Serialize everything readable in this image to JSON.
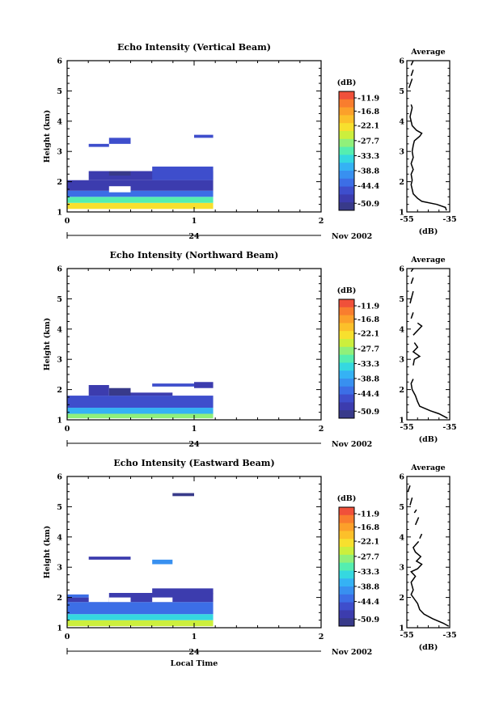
{
  "figure": {
    "colorbar_unit": "(dB)",
    "colorbar_ticks": [
      -11.9,
      -16.8,
      -22.1,
      -27.7,
      -33.3,
      -38.8,
      -44.4,
      -50.9
    ],
    "colorbar_tick_labels": [
      "-11.9",
      "-16.8",
      "-22.1",
      "-27.7",
      "-33.3",
      "-38.8",
      "-44.4",
      "-50.9"
    ],
    "colorbar_colors": [
      "#f0503a",
      "#f97d2e",
      "#fca02a",
      "#fcc02a",
      "#f7e02e",
      "#ccef3d",
      "#90f07a",
      "#55eeb0",
      "#35d8e0",
      "#35b2f4",
      "#3890f0",
      "#3c6ee6",
      "#3e4ecc",
      "#3c3cae",
      "#383a8a"
    ],
    "date_label": "Nov 2002",
    "day_label": "24",
    "x_axis_label": "Local Time",
    "average_title": "Average",
    "average_xlabel": "(dB)"
  },
  "chart_data": [
    {
      "type": "heatmap",
      "title": "Echo Intensity (Vertical Beam)",
      "ylabel": "Height (km)",
      "xlabel": "",
      "xlim": [
        0,
        2
      ],
      "ylim": [
        1,
        6
      ],
      "xticks": [
        0,
        1,
        2
      ],
      "yticks": [
        1,
        2,
        3,
        4,
        5,
        6
      ],
      "cells": [
        {
          "x0": 0.0,
          "x1": 1.15,
          "y0": 1.1,
          "y1": 1.3,
          "db": -24
        },
        {
          "x0": 0.0,
          "x1": 1.15,
          "y0": 1.3,
          "y1": 1.5,
          "db": -32
        },
        {
          "x0": 0.0,
          "x1": 1.15,
          "y0": 1.5,
          "y1": 1.7,
          "db": -42
        },
        {
          "x0": 0.0,
          "x1": 1.15,
          "y0": 1.7,
          "y1": 2.05,
          "db": -48
        },
        {
          "x0": 0.17,
          "x1": 1.15,
          "y0": 2.05,
          "y1": 2.35,
          "db": -50
        },
        {
          "x0": 0.67,
          "x1": 1.15,
          "y0": 2.05,
          "y1": 2.5,
          "db": -47
        },
        {
          "x0": 0.33,
          "x1": 0.5,
          "y0": 2.2,
          "y1": 2.35,
          "db": -51
        },
        {
          "x0": 0.33,
          "x1": 0.5,
          "y0": 1.65,
          "y1": 1.85,
          "db": -60
        },
        {
          "x0": 0.17,
          "x1": 0.33,
          "y0": 3.15,
          "y1": 3.25,
          "db": -47
        },
        {
          "x0": 0.33,
          "x1": 0.5,
          "y0": 3.25,
          "y1": 3.45,
          "db": -45
        },
        {
          "x0": 1.0,
          "x1": 1.15,
          "y0": 3.45,
          "y1": 3.55,
          "db": -46
        }
      ],
      "average": {
        "xlim": [
          -55,
          -35
        ],
        "xtick_labels": [
          "-55",
          "-35"
        ],
        "yticks": [
          1,
          2,
          3,
          4,
          5,
          6
        ],
        "segments": [
          [
            [
              -36.5,
              1.05
            ],
            [
              -37,
              1.15
            ],
            [
              -41,
              1.25
            ],
            [
              -48,
              1.35
            ],
            [
              -50,
              1.45
            ],
            [
              -52,
              1.6
            ],
            [
              -52.5,
              1.75
            ],
            [
              -53,
              1.9
            ],
            [
              -52.5,
              2.05
            ],
            [
              -53,
              2.25
            ],
            [
              -52,
              2.4
            ],
            [
              -53,
              2.6
            ],
            [
              -52,
              2.8
            ],
            [
              -52.5,
              3.0
            ],
            [
              -52,
              3.2
            ],
            [
              -51.5,
              3.35
            ],
            [
              -49,
              3.5
            ],
            [
              -48,
              3.6
            ],
            [
              -50.5,
              3.7
            ],
            [
              -52.5,
              3.85
            ],
            [
              -53,
              4.0
            ],
            [
              -53.5,
              4.15
            ],
            [
              -53,
              4.3
            ],
            [
              -52.5,
              4.45
            ],
            [
              -53,
              4.55
            ]
          ],
          [
            [
              -54,
              5.1
            ],
            [
              -52.5,
              5.4
            ]
          ],
          [
            [
              -53,
              5.5
            ],
            [
              -52,
              5.7
            ]
          ],
          [
            [
              -53,
              5.85
            ],
            [
              -52,
              6.0
            ]
          ]
        ]
      }
    },
    {
      "type": "heatmap",
      "title": "Echo Intensity (Northward Beam)",
      "ylabel": "Height (km)",
      "xlabel": "",
      "xlim": [
        0,
        2
      ],
      "ylim": [
        1,
        6
      ],
      "xticks": [
        0,
        1,
        2
      ],
      "yticks": [
        1,
        2,
        3,
        4,
        5,
        6
      ],
      "cells": [
        {
          "x0": 0.0,
          "x1": 1.15,
          "y0": 1.05,
          "y1": 1.2,
          "db": -30
        },
        {
          "x0": 0.0,
          "x1": 1.15,
          "y0": 1.2,
          "y1": 1.4,
          "db": -38
        },
        {
          "x0": 0.0,
          "x1": 1.15,
          "y0": 1.4,
          "y1": 1.8,
          "db": -46
        },
        {
          "x0": 0.17,
          "x1": 0.33,
          "y0": 1.8,
          "y1": 2.15,
          "db": -50
        },
        {
          "x0": 0.33,
          "x1": 0.5,
          "y0": 1.8,
          "y1": 2.05,
          "db": -51
        },
        {
          "x0": 0.5,
          "x1": 0.83,
          "y0": 1.8,
          "y1": 1.9,
          "db": -49
        },
        {
          "x0": 0.67,
          "x1": 1.0,
          "y0": 2.1,
          "y1": 2.2,
          "db": -45
        },
        {
          "x0": 1.0,
          "x1": 1.15,
          "y0": 2.05,
          "y1": 2.25,
          "db": -48
        }
      ],
      "average": {
        "xlim": [
          -55,
          -35
        ],
        "xtick_labels": [
          "-55",
          "-35"
        ],
        "yticks": [
          1,
          2,
          3,
          4,
          5,
          6
        ],
        "segments": [
          [
            [
              -36,
              1.05
            ],
            [
              -40,
              1.2
            ],
            [
              -44,
              1.3
            ],
            [
              -49,
              1.45
            ],
            [
              -50,
              1.6
            ],
            [
              -51,
              1.8
            ],
            [
              -52.5,
              2.0
            ],
            [
              -53,
              2.2
            ],
            [
              -52,
              2.35
            ]
          ],
          [
            [
              -52,
              2.8
            ],
            [
              -51.5,
              3.0
            ],
            [
              -49,
              3.1
            ],
            [
              -52,
              3.25
            ],
            [
              -50,
              3.4
            ],
            [
              -51.5,
              3.55
            ]
          ],
          [
            [
              -52,
              3.8
            ],
            [
              -48,
              4.1
            ],
            [
              -50,
              4.2
            ]
          ],
          [
            [
              -53,
              4.35
            ],
            [
              -52,
              4.55
            ]
          ],
          [
            [
              -53.5,
              4.85
            ],
            [
              -52,
              5.25
            ]
          ],
          [
            [
              -53,
              5.5
            ],
            [
              -52,
              5.7
            ]
          ],
          [
            [
              -53,
              5.9
            ],
            [
              -52,
              6.0
            ]
          ]
        ]
      }
    },
    {
      "type": "heatmap",
      "title": "Echo Intensity (Eastward Beam)",
      "ylabel": "Height (km)",
      "xlabel": "",
      "xlim": [
        0,
        2
      ],
      "ylim": [
        1,
        6
      ],
      "xticks": [
        0,
        1,
        2
      ],
      "yticks": [
        1,
        2,
        3,
        4,
        5,
        6
      ],
      "cells": [
        {
          "x0": 0.0,
          "x1": 1.15,
          "y0": 1.05,
          "y1": 1.25,
          "db": -26
        },
        {
          "x0": 0.0,
          "x1": 1.15,
          "y0": 1.25,
          "y1": 1.45,
          "db": -34
        },
        {
          "x0": 0.0,
          "x1": 1.15,
          "y0": 1.45,
          "y1": 1.85,
          "db": -43
        },
        {
          "x0": 0.0,
          "x1": 0.17,
          "y0": 1.85,
          "y1": 2.0,
          "db": -48
        },
        {
          "x0": 0.33,
          "x1": 1.15,
          "y0": 1.85,
          "y1": 2.15,
          "db": -48
        },
        {
          "x0": 0.67,
          "x1": 1.15,
          "y0": 2.1,
          "y1": 2.3,
          "db": -50
        },
        {
          "x0": 0.0,
          "x1": 0.17,
          "y0": 2.0,
          "y1": 2.1,
          "db": -44
        },
        {
          "x0": 0.33,
          "x1": 0.5,
          "y0": 1.85,
          "y1": 2.0,
          "db": -60
        },
        {
          "x0": 0.67,
          "x1": 0.83,
          "y0": 1.85,
          "y1": 2.0,
          "db": -60
        },
        {
          "x0": 0.17,
          "x1": 0.5,
          "y0": 3.25,
          "y1": 3.35,
          "db": -49
        },
        {
          "x0": 0.67,
          "x1": 0.83,
          "y0": 3.1,
          "y1": 3.25,
          "db": -40
        },
        {
          "x0": 0.83,
          "x1": 1.0,
          "y0": 5.35,
          "y1": 5.45,
          "db": -51
        }
      ],
      "average": {
        "xlim": [
          -55,
          -35
        ],
        "xtick_labels": [
          "-55",
          "-35"
        ],
        "yticks": [
          1,
          2,
          3,
          4,
          5,
          6
        ],
        "segments": [
          [
            [
              -35.5,
              1.05
            ],
            [
              -38,
              1.15
            ],
            [
              -43,
              1.3
            ],
            [
              -47,
              1.45
            ],
            [
              -49,
              1.6
            ],
            [
              -50,
              1.8
            ],
            [
              -51.5,
              1.95
            ],
            [
              -53,
              2.1
            ],
            [
              -52,
              2.25
            ],
            [
              -53,
              2.5
            ],
            [
              -51,
              2.7
            ],
            [
              -53,
              2.85
            ],
            [
              -50,
              2.95
            ],
            [
              -48,
              3.1
            ],
            [
              -50.5,
              3.2
            ],
            [
              -48.5,
              3.35
            ],
            [
              -51,
              3.5
            ],
            [
              -52,
              3.65
            ],
            [
              -49.5,
              3.85
            ]
          ],
          [
            [
              -49,
              3.95
            ],
            [
              -48,
              4.1
            ]
          ],
          [
            [
              -51,
              4.4
            ],
            [
              -49.5,
              4.65
            ]
          ],
          [
            [
              -51.5,
              4.8
            ],
            [
              -50.5,
              4.9
            ]
          ],
          [
            [
              -53.5,
              5.05
            ],
            [
              -52.5,
              5.3
            ]
          ],
          [
            [
              -54.5,
              5.5
            ],
            [
              -53.5,
              5.7
            ]
          ]
        ]
      }
    }
  ]
}
